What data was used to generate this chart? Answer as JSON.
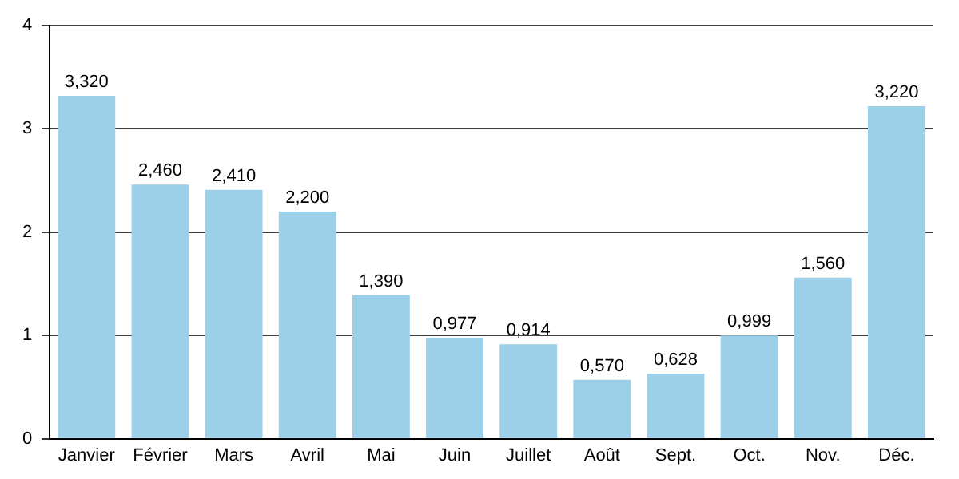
{
  "chart_data": {
    "type": "bar",
    "categories": [
      "Janvier",
      "Février",
      "Mars",
      "Avril",
      "Mai",
      "Juin",
      "Juillet",
      "Août",
      "Sept.",
      "Oct.",
      "Nov.",
      "Déc."
    ],
    "values": [
      3.32,
      2.46,
      2.41,
      2.2,
      1.39,
      0.977,
      0.914,
      0.57,
      0.628,
      0.999,
      1.56,
      3.22
    ],
    "value_labels": [
      "3,320",
      "2,460",
      "2,410",
      "2,200",
      "1,390",
      "0,977",
      "0,914",
      "0,570",
      "0,628",
      "0,999",
      "1,560",
      "3,220"
    ],
    "color": "#9ccfe8",
    "ylim": [
      0,
      4
    ],
    "yticks": [
      0,
      1,
      2,
      3,
      4
    ],
    "grid": "y",
    "legend": false
  }
}
